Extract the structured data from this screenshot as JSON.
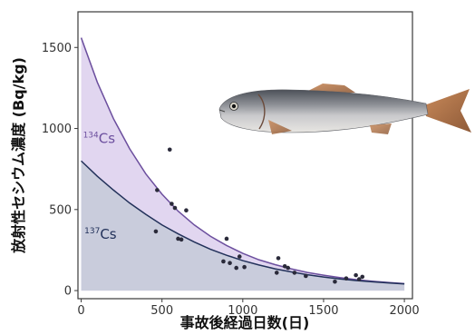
{
  "chart_data": {
    "type": "scatter",
    "title": "",
    "xlabel": "事故後経過日数(日)",
    "ylabel": "放射性セシウム濃度 (Bq/kg)",
    "xlim": [
      -20,
      2050
    ],
    "ylim": [
      -50,
      1720
    ],
    "xticks": [
      0,
      500,
      1000,
      1500,
      2000
    ],
    "yticks": [
      0,
      500,
      1000,
      1500
    ],
    "grid": false,
    "legend": "none",
    "series": [
      {
        "name": "134Cs",
        "label_mass": "134",
        "label_element": "Cs",
        "color": "#6c4f9e",
        "fill": "#ded2ee",
        "curve_x": [
          0,
          100,
          200,
          300,
          400,
          500,
          600,
          700,
          800,
          900,
          1000,
          1100,
          1200,
          1300,
          1400,
          1500,
          1600,
          1700,
          1800,
          1900,
          2000
        ],
        "curve_y": [
          1560,
          1285,
          1060,
          875,
          720,
          595,
          490,
          405,
          335,
          278,
          230,
          190,
          160,
          134,
          112,
          95,
          80,
          68,
          58,
          50,
          43
        ]
      },
      {
        "name": "137Cs",
        "label_mass": "137",
        "label_element": "Cs",
        "color": "#22315a",
        "fill": "#c4cad8",
        "curve_x": [
          0,
          100,
          200,
          300,
          400,
          500,
          600,
          700,
          800,
          900,
          1000,
          1100,
          1200,
          1300,
          1400,
          1500,
          1600,
          1700,
          1800,
          1900,
          2000
        ],
        "curve_y": [
          800,
          705,
          620,
          540,
          470,
          405,
          350,
          300,
          255,
          218,
          185,
          158,
          134,
          115,
          98,
          84,
          72,
          62,
          54,
          47,
          41
        ]
      }
    ],
    "points": {
      "color": "#2a2a3a",
      "x": [
        462,
        470,
        548,
        560,
        580,
        600,
        620,
        650,
        880,
        900,
        920,
        960,
        1010,
        1220,
        1260,
        1280,
        1320,
        1390,
        1570,
        1640,
        1700,
        1720,
        1740,
        980,
        1210
      ],
      "y": [
        365,
        620,
        870,
        535,
        510,
        320,
        315,
        495,
        180,
        320,
        170,
        140,
        145,
        200,
        150,
        140,
        110,
        90,
        55,
        75,
        95,
        70,
        85,
        210,
        110
      ]
    }
  },
  "fish_image": {
    "name": "fish-photo",
    "description_icon": "fish-icon"
  }
}
